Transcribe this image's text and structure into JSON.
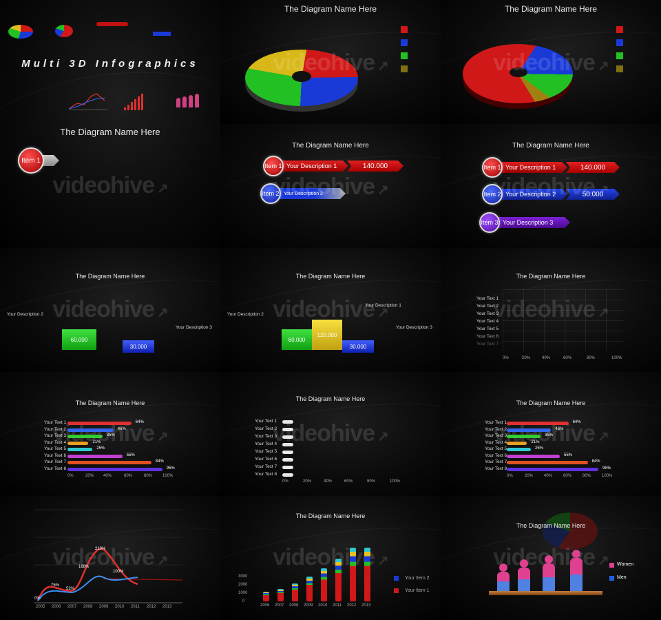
{
  "watermark": "videohive",
  "title_banner": "Multi 3D Infographics",
  "diagram_title": "The Diagram Name Here",
  "items": {
    "item1": "Item 1",
    "item2": "Item 2",
    "item3": "Item 3",
    "desc1": "Your Description 1",
    "desc2": "Your Description 2",
    "desc3": "Your Description 3",
    "val1": "140.000",
    "val2": "50.000"
  },
  "podium": {
    "v_green": "60.000",
    "v_yellow": "120.000",
    "v_blue": "30.000"
  },
  "text_labels": [
    "Your Text 1",
    "Your Text 2",
    "Your Text 3",
    "Your Text 4",
    "Your Text 5",
    "Your Text 6",
    "Your Text 7",
    "Your Text 8"
  ],
  "pct_axis": [
    "0%",
    "20%",
    "40%",
    "60%",
    "80%",
    "100%"
  ],
  "hbar_values": [
    "64%",
    "46%",
    "35%",
    "21%",
    "25%",
    "55%",
    "84%",
    "95%"
  ],
  "hbar_colors": [
    "#e03030",
    "#3366ee",
    "#33cc33",
    "#e8a020",
    "#30c8d0",
    "#c040d0",
    "#e05020",
    "#6030e0"
  ],
  "line_chart": {
    "years": [
      "2005",
      "2006",
      "2007",
      "2008",
      "2009",
      "2010",
      "2011",
      "2012",
      "2013"
    ],
    "labels": [
      "0%",
      "75%",
      "52%",
      "168%",
      "210%",
      "100%"
    ]
  },
  "stacked_bar": {
    "years": [
      "2006",
      "2007",
      "2008",
      "2009",
      "2010",
      "2011",
      "2012",
      "2013"
    ],
    "yticks": [
      "0",
      "1000",
      "2000",
      "3000"
    ],
    "legend": [
      "Your Item 2",
      "Your Item 1"
    ]
  },
  "people": {
    "legend": [
      "Women",
      "Men"
    ]
  },
  "colors": {
    "red": "#d01818",
    "blue": "#1a3ad8",
    "green": "#22c022",
    "purple": "#6a14c8",
    "yellow": "#e0c020"
  }
}
